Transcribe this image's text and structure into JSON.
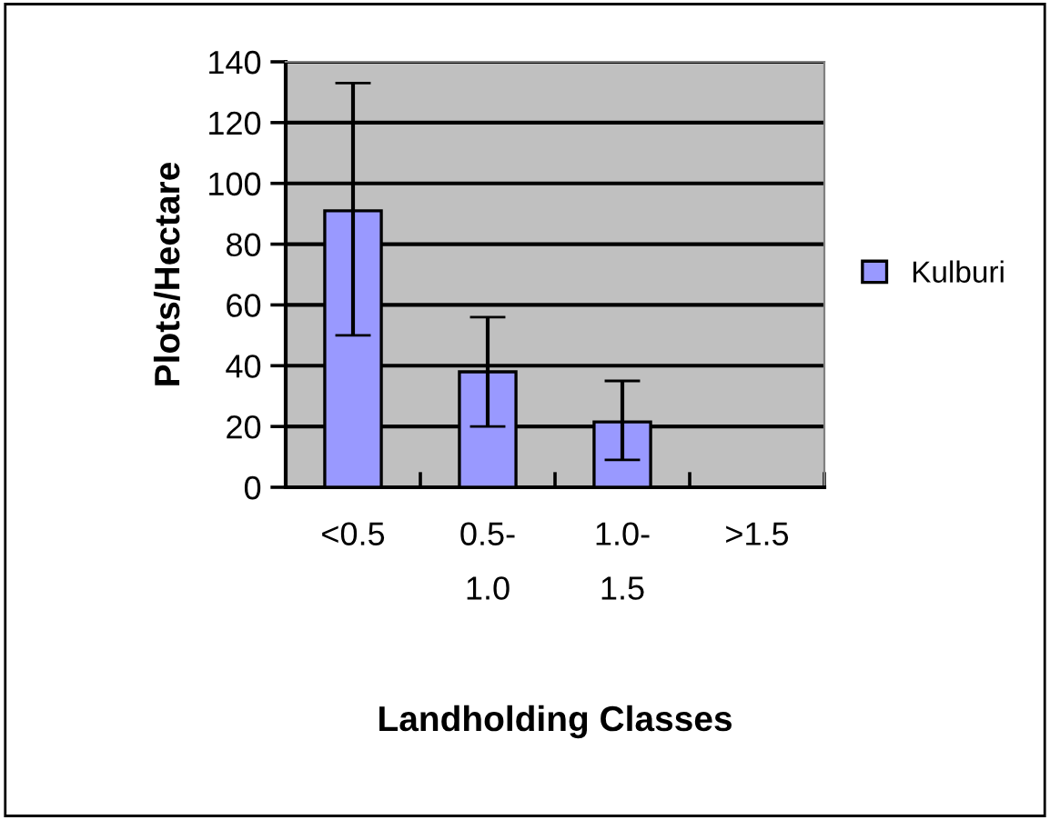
{
  "chart_data": {
    "type": "bar",
    "xlabel": "Landholding Classes",
    "ylabel": "Plots/Hectare",
    "categories": [
      "<0.5",
      "0.5-\n1.0",
      "1.0-\n1.5",
      ">1.5"
    ],
    "series": [
      {
        "name": "Kulburi",
        "color": "#9999ff",
        "values": [
          91,
          38,
          21.5,
          null
        ],
        "errors": [
          [
            50,
            133
          ],
          [
            20,
            56
          ],
          [
            9,
            35
          ],
          null
        ]
      }
    ],
    "ylim": [
      0,
      140
    ],
    "yticks": [
      0,
      20,
      40,
      60,
      80,
      100,
      120,
      140
    ],
    "grid": "y",
    "legend": "right"
  }
}
